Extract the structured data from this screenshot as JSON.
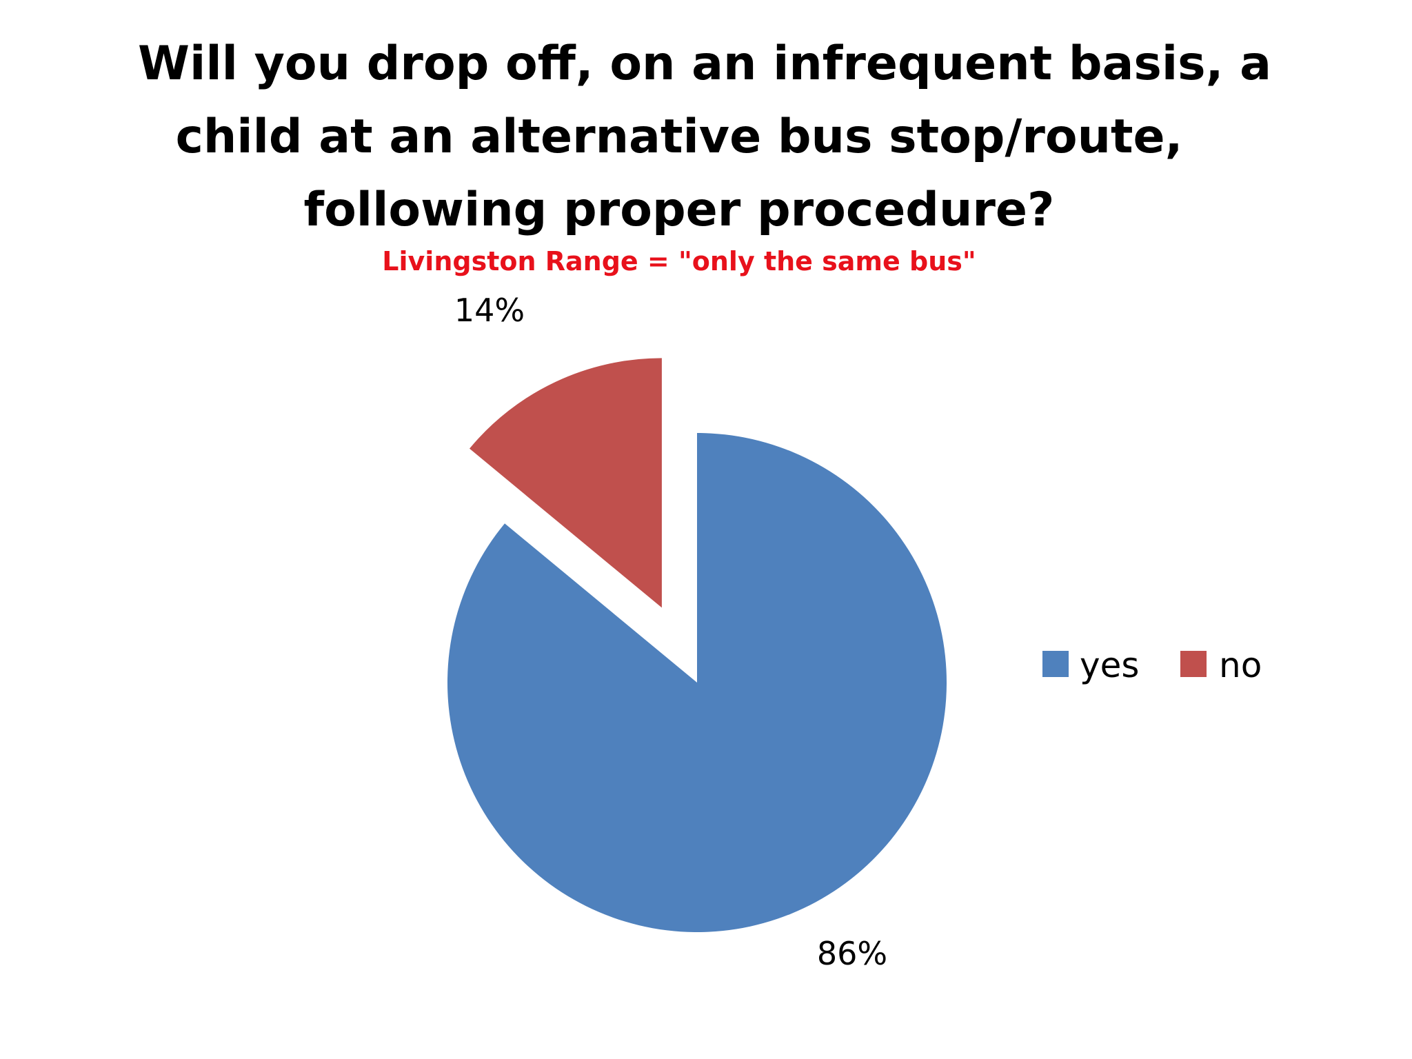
{
  "chart_data": {
    "type": "pie",
    "title_lines": [
      "Will you drop off, on an infrequent basis, a",
      "child at an alternative bus stop/route,",
      "following proper procedure?"
    ],
    "subtitle": "Livingston Range = \"only the same bus\"",
    "categories": [
      "yes",
      "no"
    ],
    "values": [
      86,
      14
    ],
    "data_labels": [
      "86%",
      "14%"
    ],
    "colors": [
      "#4f81bd",
      "#c0504d"
    ],
    "subtitle_color": "#e8111b",
    "exploded_slice": "no",
    "legend_position": "right"
  }
}
